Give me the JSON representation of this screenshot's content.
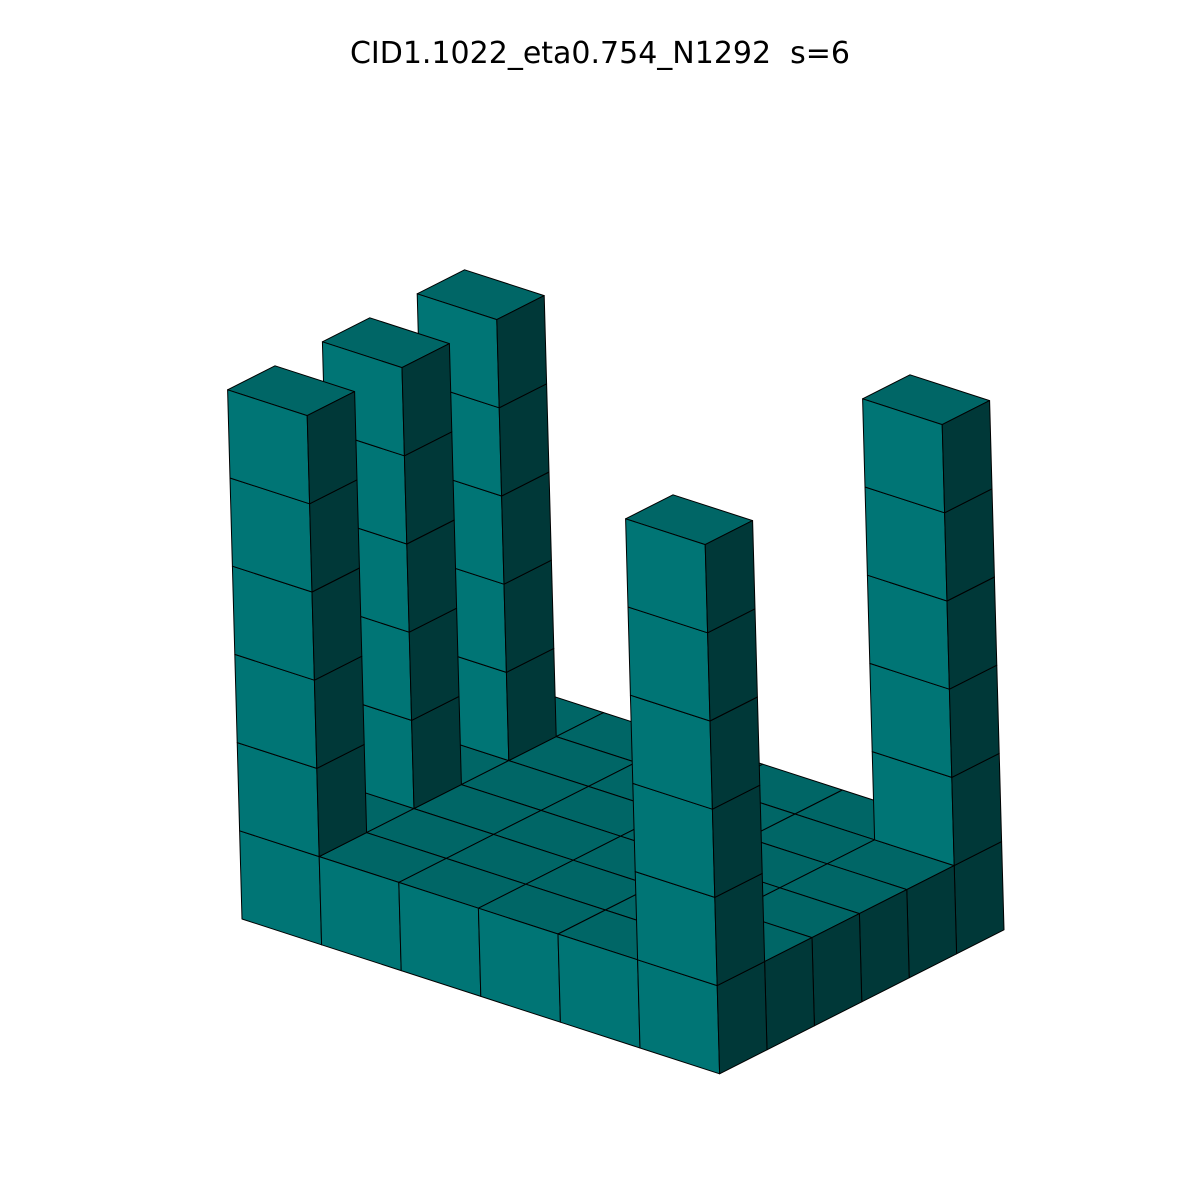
{
  "title": "CID1.1022_eta0.754_N1292  s=6",
  "colors": {
    "background": "#ffffff",
    "top_face": "#006666",
    "left_face": "#007575",
    "right_face": "#003838",
    "edge": "#000000"
  },
  "structure": {
    "grid_size": 6,
    "base_height": 1,
    "pillars": [
      {
        "x": 0,
        "y": 0,
        "height": 6
      },
      {
        "x": 0,
        "y": 2,
        "height": 6
      },
      {
        "x": 0,
        "y": 4,
        "height": 6
      },
      {
        "x": 5,
        "y": 0,
        "height": 6
      },
      {
        "x": 5,
        "y": 5,
        "height": 6
      }
    ]
  }
}
